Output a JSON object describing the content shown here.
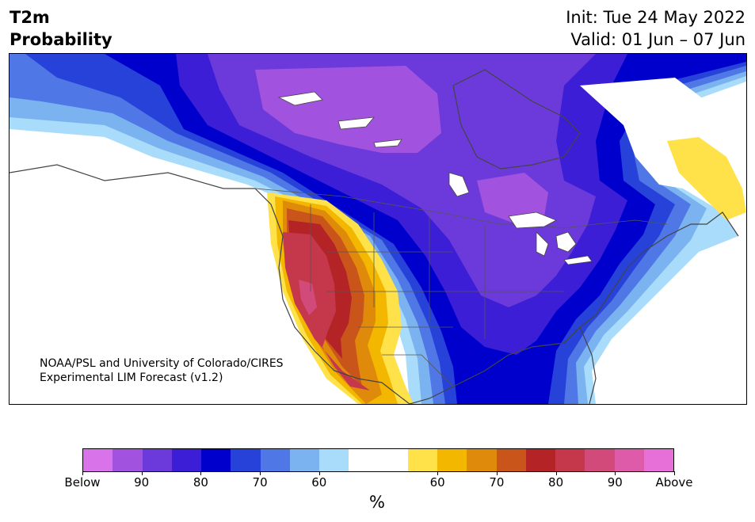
{
  "header": {
    "title_line1": "T2m",
    "title_line2": "Probability",
    "init": "Init: Tue 24 May 2022",
    "valid": "Valid: 01 Jun – 07 Jun"
  },
  "map": {
    "credit_line1": "NOAA/PSL and University of Colorado/CIRES",
    "credit_line2": "Experimental LIM Forecast (v1.2)"
  },
  "colorbar": {
    "colors": [
      "#d873e9",
      "#a153e0",
      "#6c3adb",
      "#3c1ed6",
      "#0000cd",
      "#2642d8",
      "#5077e6",
      "#7bb3f0",
      "#a9dcfb",
      "#ffffff",
      "#ffffff",
      "#ffe24a",
      "#f3b700",
      "#e08a0b",
      "#c9551b",
      "#b42427",
      "#c5374b",
      "#d24a7a",
      "#de5ba9",
      "#e76fd8"
    ],
    "labels": [
      "Below",
      "90",
      "80",
      "70",
      "60",
      "60",
      "70",
      "80",
      "90",
      "Above"
    ],
    "unit": "%"
  }
}
